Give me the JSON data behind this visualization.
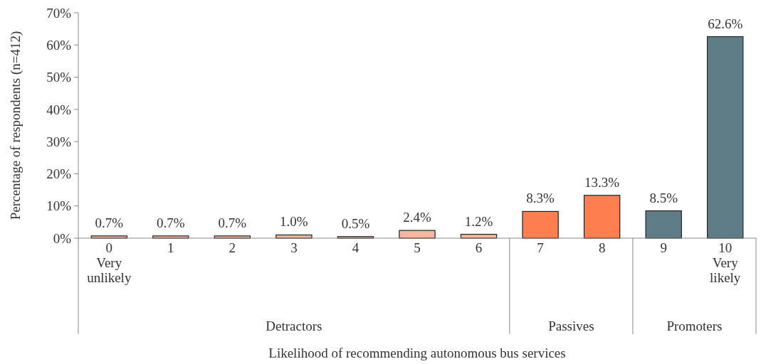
{
  "chart_data": {
    "type": "bar",
    "xlabel": "Likelihood of recommending autonomous bus services",
    "ylabel": "Percentage of respondents (n=412)",
    "categories": [
      "0\nVery\nunlikely",
      "1",
      "2",
      "3",
      "4",
      "5",
      "6",
      "7",
      "8",
      "9",
      "10\nVery\nlikely"
    ],
    "values": [
      0.7,
      0.7,
      0.7,
      1.0,
      0.5,
      2.4,
      1.2,
      8.3,
      13.3,
      8.5,
      62.6
    ],
    "colors": [
      "#fbb59b",
      "#fbb59b",
      "#fbb59b",
      "#fbb59b",
      "#fbb59b",
      "#fbb59b",
      "#fbb59b",
      "#fd7e4f",
      "#fd7e4f",
      "#5f7d87",
      "#5f7d87"
    ],
    "value_labels": [
      "0.7%",
      "0.7%",
      "0.7%",
      "1.0%",
      "0.5%",
      "2.4%",
      "1.2%",
      "8.3%",
      "13.3%",
      "8.5%",
      "62.6%"
    ],
    "ylim": [
      0,
      70
    ],
    "yticks": [
      {
        "value": 0,
        "label": "0%"
      },
      {
        "value": 10,
        "label": "10%"
      },
      {
        "value": 20,
        "label": "20%"
      },
      {
        "value": 30,
        "label": "30%"
      },
      {
        "value": 40,
        "label": "40%"
      },
      {
        "value": 50,
        "label": "50%"
      },
      {
        "value": 60,
        "label": "60%"
      },
      {
        "value": 70,
        "label": "70%"
      }
    ],
    "annotations": [
      "Detractors",
      "Passives",
      "Promoters"
    ]
  }
}
